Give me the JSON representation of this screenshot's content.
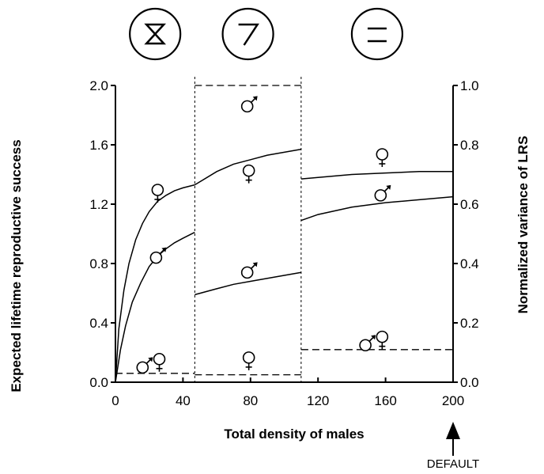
{
  "chart_data": {
    "type": "line",
    "xlabel": "Total density of males",
    "ylabel_left": "Expected lifetime reproductive success",
    "ylabel_right": "Normalized variance of LRS",
    "xlim": [
      0,
      200
    ],
    "ylim_left": [
      0,
      2.0
    ],
    "ylim_right": [
      0,
      1.0
    ],
    "x_ticks": [
      "0",
      "40",
      "80",
      "120",
      "160",
      "200"
    ],
    "y_left_ticks": [
      "0.0",
      "0.4",
      "0.8",
      "1.2",
      "1.6",
      "2.0"
    ],
    "y_right_ticks": [
      "0.0",
      "0.2",
      "0.4",
      "0.6",
      "0.8",
      "1.0"
    ],
    "boundaries": [
      47,
      110
    ],
    "default_marker": {
      "x": 200,
      "label": "DEFAULT"
    },
    "panels": [
      {
        "symbol": "hourglass",
        "x_range": [
          0,
          47
        ]
      },
      {
        "symbol": "seven",
        "x_range": [
          47,
          110
        ]
      },
      {
        "symbol": "equals",
        "x_range": [
          110,
          200
        ]
      }
    ],
    "series": [
      {
        "sex": "female",
        "style": "solid",
        "axis": "left",
        "segments": [
          [
            [
              0,
              0
            ],
            [
              2,
              0.36
            ],
            [
              5,
              0.62
            ],
            [
              8,
              0.8
            ],
            [
              12,
              0.96
            ],
            [
              16,
              1.07
            ],
            [
              20,
              1.15
            ],
            [
              25,
              1.22
            ],
            [
              30,
              1.26
            ],
            [
              35,
              1.29
            ],
            [
              40,
              1.31
            ],
            [
              47,
              1.33
            ]
          ],
          [
            [
              47,
              1.33
            ],
            [
              60,
              1.42
            ],
            [
              70,
              1.47
            ],
            [
              80,
              1.5
            ],
            [
              90,
              1.53
            ],
            [
              100,
              1.55
            ],
            [
              110,
              1.57
            ]
          ],
          [
            [
              110,
              1.37
            ],
            [
              120,
              1.38
            ],
            [
              140,
              1.4
            ],
            [
              160,
              1.41
            ],
            [
              180,
              1.42
            ],
            [
              200,
              1.42
            ]
          ]
        ]
      },
      {
        "sex": "male",
        "style": "solid",
        "axis": "left",
        "segments": [
          [
            [
              0,
              0
            ],
            [
              3,
              0.22
            ],
            [
              6,
              0.38
            ],
            [
              10,
              0.54
            ],
            [
              15,
              0.67
            ],
            [
              20,
              0.78
            ],
            [
              25,
              0.85
            ],
            [
              30,
              0.9
            ],
            [
              35,
              0.94
            ],
            [
              40,
              0.97
            ],
            [
              47,
              1.01
            ]
          ],
          [
            [
              47,
              0.59
            ],
            [
              60,
              0.63
            ],
            [
              70,
              0.66
            ],
            [
              80,
              0.68
            ],
            [
              90,
              0.7
            ],
            [
              100,
              0.72
            ],
            [
              110,
              0.74
            ]
          ],
          [
            [
              110,
              1.09
            ],
            [
              120,
              1.13
            ],
            [
              140,
              1.18
            ],
            [
              160,
              1.21
            ],
            [
              180,
              1.23
            ],
            [
              200,
              1.25
            ]
          ]
        ]
      },
      {
        "sex": "female and male",
        "measure": "normalized variance of LRS",
        "style": "dashed",
        "axis": "right",
        "segments": [
          [
            [
              0,
              0.03
            ],
            [
              47,
              0.03
            ]
          ],
          [
            [
              47,
              1.0
            ],
            [
              110,
              1.0
            ]
          ],
          [
            [
              47,
              0.025
            ],
            [
              110,
              0.025
            ]
          ],
          [
            [
              110,
              0.11
            ],
            [
              200,
              0.11
            ]
          ]
        ]
      }
    ],
    "symbol_annotations": [
      {
        "symbol": "female",
        "x": 25,
        "y": 1.28
      },
      {
        "symbol": "male",
        "x": 25,
        "y": 0.85
      },
      {
        "symbol": "male",
        "x": 17,
        "y": 0.11
      },
      {
        "symbol": "female",
        "x": 26,
        "y": 0.14
      },
      {
        "symbol": "male",
        "x": 79,
        "y": 1.87
      },
      {
        "symbol": "female",
        "x": 79,
        "y": 1.41
      },
      {
        "symbol": "male",
        "x": 79,
        "y": 0.75
      },
      {
        "symbol": "female",
        "x": 79,
        "y": 0.15
      },
      {
        "symbol": "female",
        "x": 158,
        "y": 1.52
      },
      {
        "symbol": "male",
        "x": 158,
        "y": 1.27
      },
      {
        "symbol": "male",
        "x": 149,
        "y": 0.26
      },
      {
        "symbol": "female",
        "x": 158,
        "y": 0.29
      }
    ]
  }
}
